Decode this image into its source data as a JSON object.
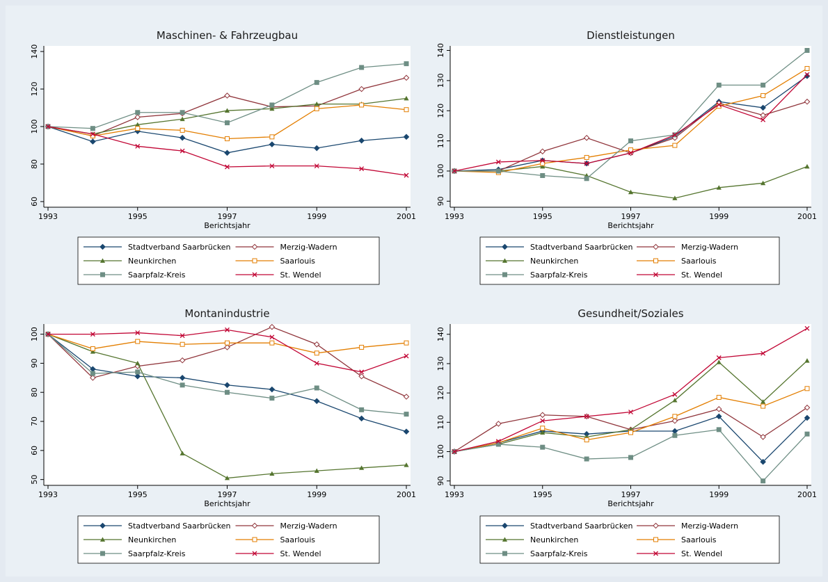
{
  "chart_data": [
    {
      "type": "line",
      "title": "Maschinen- & Fahrzeugbau",
      "x_label": "Berichtsjahr",
      "x": [
        1993,
        1994,
        1995,
        1996,
        1997,
        1998,
        1999,
        2000,
        2001
      ],
      "xlim": [
        1993,
        2001
      ],
      "xticks": [
        1993,
        1995,
        1997,
        1999,
        2001
      ],
      "ylim": [
        57,
        143
      ],
      "yticks": [
        60,
        80,
        100,
        120,
        140
      ],
      "series": [
        {
          "name": "Stadtverband Saarbrücken",
          "color": "#1a476f",
          "marker": "diamond",
          "values": [
            100,
            92,
            97.5,
            94,
            86,
            90.5,
            88.5,
            92.5,
            94.5
          ]
        },
        {
          "name": "Merzig-Wadern",
          "color": "#90353b",
          "marker": "diamond-hollow",
          "values": [
            100,
            95,
            105,
            107,
            116.5,
            110.5,
            111,
            120,
            126
          ]
        },
        {
          "name": "Neunkirchen",
          "color": "#55752f",
          "marker": "triangle",
          "values": [
            100,
            96,
            101,
            104,
            108.5,
            109.5,
            112,
            112,
            115
          ]
        },
        {
          "name": "Saarlouis",
          "color": "#e37e00",
          "marker": "square-hollow",
          "values": [
            100,
            95,
            99,
            98,
            93.5,
            94.5,
            109.5,
            111.5,
            109
          ]
        },
        {
          "name": "Saarpfalz-Kreis",
          "color": "#6e8e84",
          "marker": "square",
          "values": [
            100,
            99,
            107.5,
            107.5,
            102,
            111.5,
            123.5,
            131.5,
            133.5
          ]
        },
        {
          "name": "St. Wendel",
          "color": "#c10534",
          "marker": "x",
          "values": [
            100,
            96,
            89.5,
            87,
            78.5,
            79,
            79,
            77.5,
            74
          ]
        }
      ]
    },
    {
      "type": "line",
      "title": "Dienstleistungen",
      "x_label": "Berichtsjahr",
      "x": [
        1993,
        1994,
        1995,
        1996,
        1997,
        1998,
        1999,
        2000,
        2001
      ],
      "xlim": [
        1993,
        2001
      ],
      "xticks": [
        1993,
        1995,
        1997,
        1999,
        2001
      ],
      "ylim": [
        88,
        141.5
      ],
      "yticks": [
        90,
        100,
        110,
        120,
        130,
        140
      ],
      "series": [
        {
          "name": "Stadtverband Saarbrücken",
          "color": "#1a476f",
          "marker": "diamond",
          "values": [
            100,
            100.5,
            103.5,
            102.5,
            106,
            111.5,
            123,
            121,
            131.5
          ]
        },
        {
          "name": "Merzig-Wadern",
          "color": "#90353b",
          "marker": "diamond-hollow",
          "values": [
            100,
            100,
            106.5,
            111,
            106,
            111,
            122.5,
            118.5,
            123
          ]
        },
        {
          "name": "Neunkirchen",
          "color": "#55752f",
          "marker": "triangle",
          "values": [
            100,
            100,
            101.5,
            98.5,
            93,
            91,
            94.5,
            96,
            101.5
          ]
        },
        {
          "name": "Saarlouis",
          "color": "#e37e00",
          "marker": "square-hollow",
          "values": [
            100,
            99.5,
            102.5,
            104.5,
            107,
            108.5,
            121.5,
            125,
            134
          ]
        },
        {
          "name": "Saarpfalz-Kreis",
          "color": "#6e8e84",
          "marker": "square",
          "values": [
            100,
            100,
            98.5,
            97.5,
            110,
            112,
            128.5,
            128.5,
            140
          ]
        },
        {
          "name": "St. Wendel",
          "color": "#c10534",
          "marker": "x",
          "values": [
            100,
            103,
            103.5,
            102.5,
            106,
            112,
            122,
            117,
            132
          ]
        }
      ]
    },
    {
      "type": "line",
      "title": "Montanindustrie",
      "x_label": "Berichtsjahr",
      "x": [
        1993,
        1994,
        1995,
        1996,
        1997,
        1998,
        1999,
        2000,
        2001
      ],
      "xlim": [
        1993,
        2001
      ],
      "xticks": [
        1993,
        1995,
        1997,
        1999,
        2001
      ],
      "ylim": [
        48,
        103.5
      ],
      "yticks": [
        50,
        60,
        70,
        80,
        90,
        100
      ],
      "series": [
        {
          "name": "Stadtverband Saarbrücken",
          "color": "#1a476f",
          "marker": "diamond",
          "values": [
            100,
            88,
            85.5,
            85,
            82.5,
            81,
            77,
            71,
            66.5
          ]
        },
        {
          "name": "Merzig-Wadern",
          "color": "#90353b",
          "marker": "diamond-hollow",
          "values": [
            100,
            85,
            89,
            91,
            95.5,
            102.5,
            96.5,
            85.5,
            78.5
          ]
        },
        {
          "name": "Neunkirchen",
          "color": "#55752f",
          "marker": "triangle",
          "values": [
            100,
            94,
            90,
            59,
            50.5,
            52,
            53,
            54,
            55
          ]
        },
        {
          "name": "Saarlouis",
          "color": "#e37e00",
          "marker": "square-hollow",
          "values": [
            100,
            95,
            97.5,
            96.5,
            97,
            97,
            93.5,
            95.5,
            97
          ]
        },
        {
          "name": "Saarpfalz-Kreis",
          "color": "#6e8e84",
          "marker": "square",
          "values": [
            100,
            86.5,
            87,
            82.5,
            80,
            78,
            81.5,
            74,
            72.5
          ]
        },
        {
          "name": "St. Wendel",
          "color": "#c10534",
          "marker": "x",
          "values": [
            100,
            100,
            100.5,
            99.5,
            101.5,
            99,
            90,
            87,
            92.5
          ]
        }
      ]
    },
    {
      "type": "line",
      "title": "Gesundheit/Soziales",
      "x_label": "Berichtsjahr",
      "x": [
        1993,
        1994,
        1995,
        1996,
        1997,
        1998,
        1999,
        2000,
        2001
      ],
      "xlim": [
        1993,
        2001
      ],
      "xticks": [
        1993,
        1995,
        1997,
        1999,
        2001
      ],
      "ylim": [
        88.5,
        143.5
      ],
      "yticks": [
        90,
        100,
        110,
        120,
        130,
        140
      ],
      "series": [
        {
          "name": "Stadtverband Saarbrücken",
          "color": "#1a476f",
          "marker": "diamond",
          "values": [
            100,
            103,
            107,
            106,
            107,
            107,
            112,
            96.5,
            111.5
          ]
        },
        {
          "name": "Merzig-Wadern",
          "color": "#90353b",
          "marker": "diamond-hollow",
          "values": [
            100,
            109.5,
            112.5,
            112,
            107.5,
            110.5,
            114.5,
            105,
            115
          ]
        },
        {
          "name": "Neunkirchen",
          "color": "#55752f",
          "marker": "triangle",
          "values": [
            100,
            102.5,
            106.5,
            105,
            107.5,
            117.5,
            130.5,
            117,
            131
          ]
        },
        {
          "name": "Saarlouis",
          "color": "#e37e00",
          "marker": "square-hollow",
          "values": [
            100,
            103,
            108,
            104,
            106.5,
            112,
            118.5,
            115.5,
            121.5
          ]
        },
        {
          "name": "Saarpfalz-Kreis",
          "color": "#6e8e84",
          "marker": "square",
          "values": [
            100,
            102.5,
            101.5,
            97.5,
            98,
            105.5,
            107.5,
            90,
            106
          ]
        },
        {
          "name": "St. Wendel",
          "color": "#c10534",
          "marker": "x",
          "values": [
            100,
            103.5,
            110.5,
            112,
            113.5,
            119.5,
            132,
            133.5,
            142
          ]
        }
      ]
    }
  ]
}
